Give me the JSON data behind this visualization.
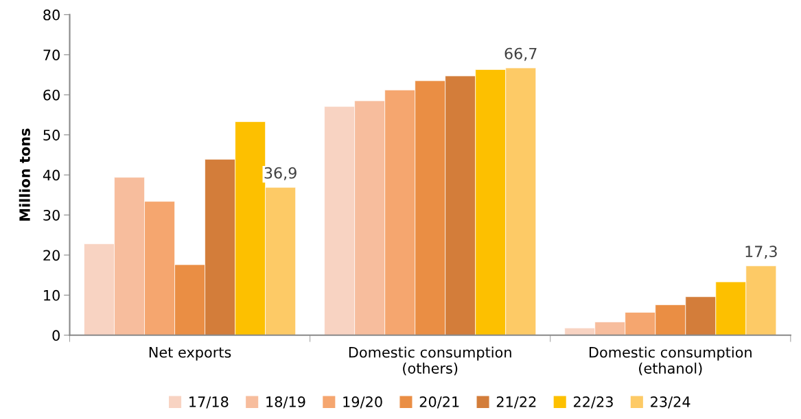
{
  "chart_data": {
    "type": "bar",
    "ylabel": "Million tons",
    "categories": [
      "Net exports",
      "Domestic consumption\n(others)",
      "Domestic consumption\n(ethanol)"
    ],
    "series": [
      {
        "name": "17/18",
        "color": "#f8d3c2",
        "values": [
          22.8,
          57.1,
          1.8
        ]
      },
      {
        "name": "18/19",
        "color": "#f7bd9d",
        "values": [
          39.4,
          58.5,
          3.3
        ]
      },
      {
        "name": "19/20",
        "color": "#f5a66f",
        "values": [
          33.4,
          61.2,
          5.7
        ]
      },
      {
        "name": "20/21",
        "color": "#ea8e44",
        "values": [
          17.6,
          63.5,
          7.6
        ]
      },
      {
        "name": "21/22",
        "color": "#d37d3a",
        "values": [
          43.9,
          64.7,
          9.6
        ]
      },
      {
        "name": "22/23",
        "color": "#fdc000",
        "values": [
          53.3,
          66.3,
          13.3
        ]
      },
      {
        "name": "23/24",
        "color": "#fdca66",
        "values": [
          36.9,
          66.7,
          17.3
        ],
        "value_labels": [
          "36,9",
          "66,7",
          "17,3"
        ]
      }
    ],
    "ylim": [
      0,
      80
    ],
    "yticks": [
      0,
      10,
      20,
      30,
      40,
      50,
      60,
      70,
      80
    ],
    "grid": false,
    "legend": "bottom"
  }
}
